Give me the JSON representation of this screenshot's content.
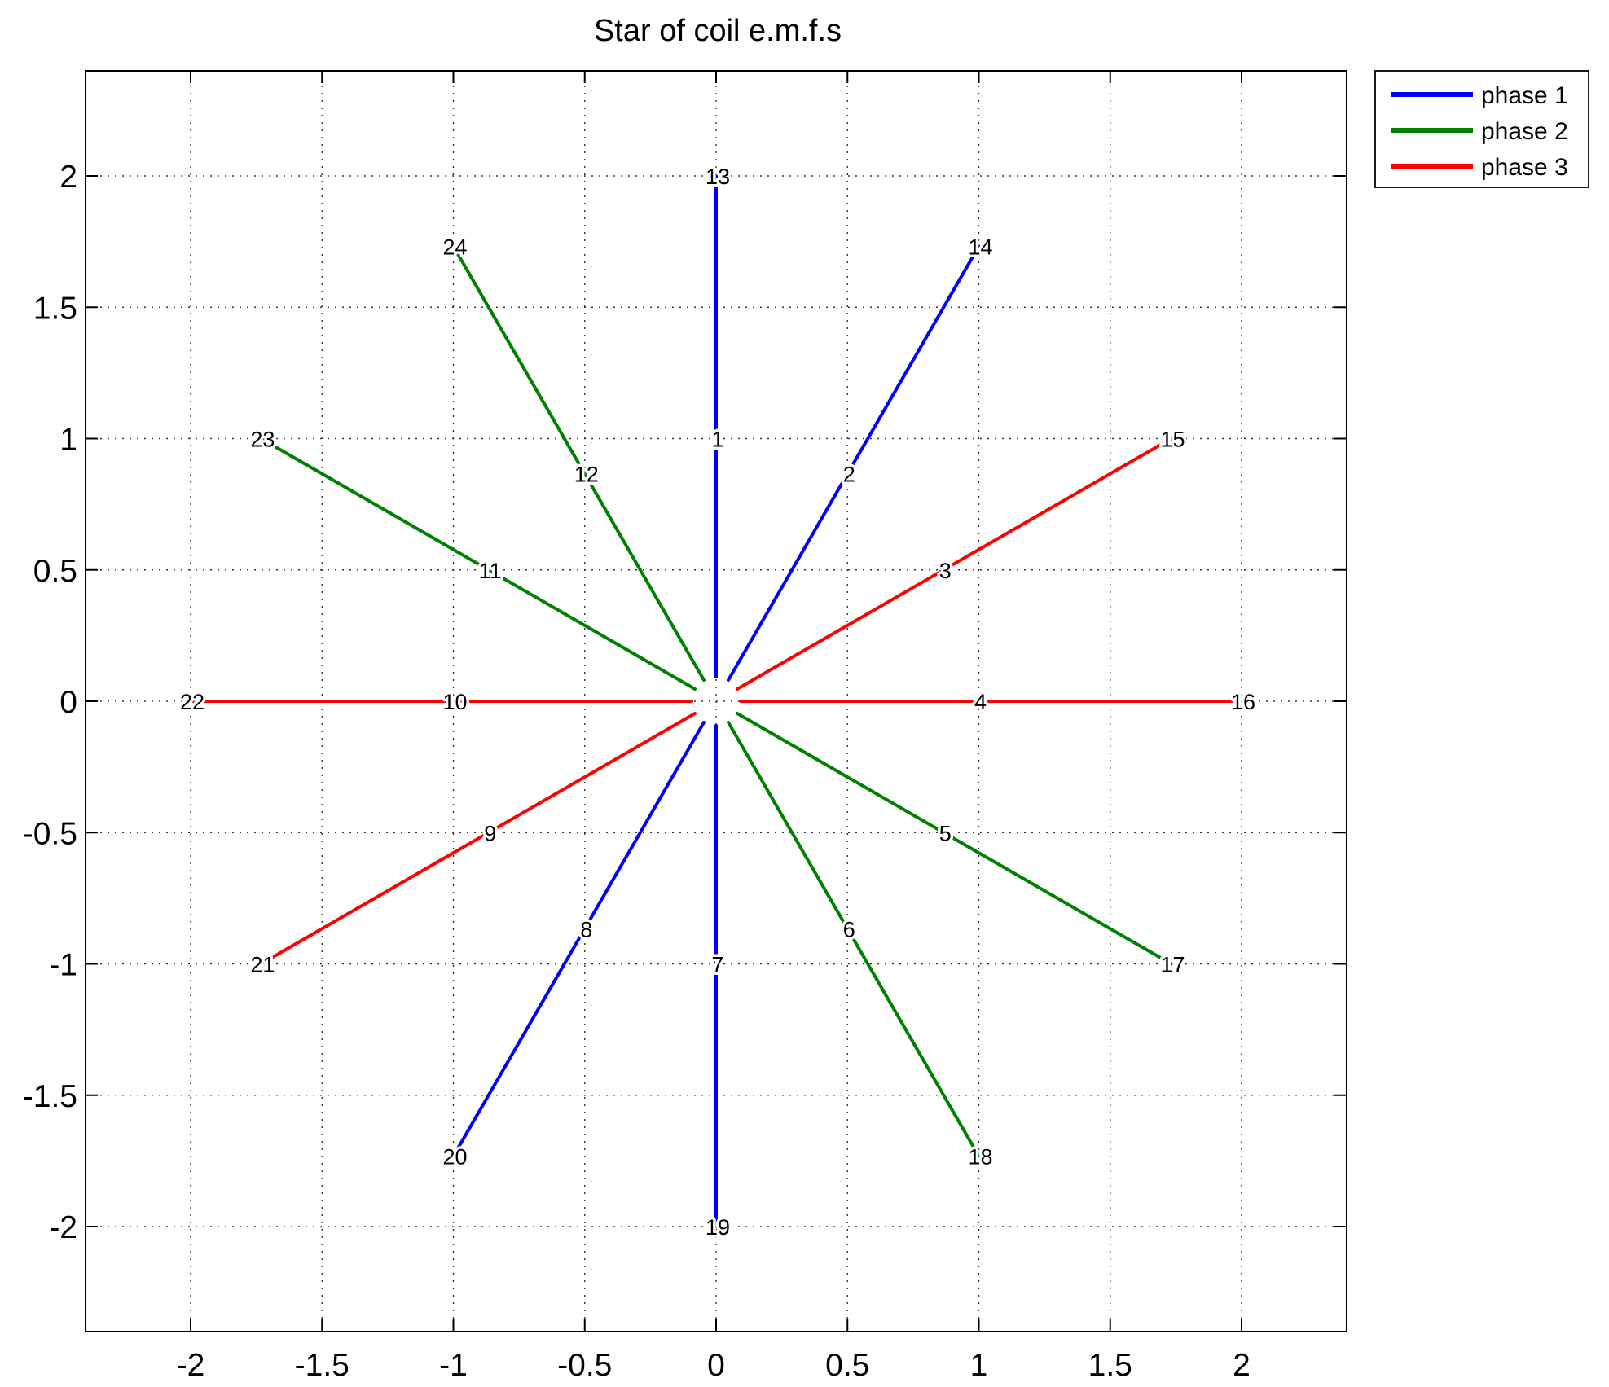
{
  "chart_data": {
    "type": "line",
    "title": "Star of coil e.m.f.s",
    "xlabel": "",
    "ylabel": "",
    "xlim": [
      -2.4,
      2.4
    ],
    "ylim": [
      -2.4,
      2.4
    ],
    "xticks": [
      "-2",
      "-1.5",
      "-1",
      "-0.5",
      "0",
      "0.5",
      "1",
      "1.5",
      "2"
    ],
    "yticks": [
      "2",
      "1.5",
      "1",
      "0.5",
      "0",
      "-0.5",
      "-1",
      "-1.5",
      "-2"
    ],
    "xtick_values": [
      -2,
      -1.5,
      -1,
      -0.5,
      0,
      0.5,
      1,
      1.5,
      2
    ],
    "ytick_values": [
      2,
      1.5,
      1,
      0.5,
      0,
      -0.5,
      -1,
      -1.5,
      -2
    ],
    "grid": true,
    "legend_position": "outside top-right",
    "series": [
      {
        "name": "phase 1",
        "color": "#0000ff",
        "points": [
          {
            "label": "1",
            "x": 0,
            "y": 1
          },
          {
            "label": "2",
            "x": 0.5,
            "y": 0.866
          },
          {
            "label": "13",
            "x": 0,
            "y": 2
          },
          {
            "label": "14",
            "x": 1,
            "y": 1.732
          },
          {
            "label": "7",
            "x": 0,
            "y": -1
          },
          {
            "label": "8",
            "x": -0.5,
            "y": -0.866
          },
          {
            "label": "19",
            "x": 0,
            "y": -2
          },
          {
            "label": "20",
            "x": -1,
            "y": -1.732
          }
        ]
      },
      {
        "name": "phase 2",
        "color": "#008000",
        "points": [
          {
            "label": "5",
            "x": 0.866,
            "y": -0.5
          },
          {
            "label": "6",
            "x": 0.5,
            "y": -0.866
          },
          {
            "label": "17",
            "x": 1.732,
            "y": -1
          },
          {
            "label": "18",
            "x": 1,
            "y": -1.732
          },
          {
            "label": "11",
            "x": -0.866,
            "y": 0.5
          },
          {
            "label": "12",
            "x": -0.5,
            "y": 0.866
          },
          {
            "label": "23",
            "x": -1.732,
            "y": 1
          },
          {
            "label": "24",
            "x": -1,
            "y": 1.732
          }
        ]
      },
      {
        "name": "phase 3",
        "color": "#ff0000",
        "points": [
          {
            "label": "9",
            "x": -0.866,
            "y": -0.5
          },
          {
            "label": "10",
            "x": -1,
            "y": 0
          },
          {
            "label": "21",
            "x": -1.732,
            "y": -1
          },
          {
            "label": "22",
            "x": -2,
            "y": 0
          },
          {
            "label": "3",
            "x": 0.866,
            "y": 0.5
          },
          {
            "label": "4",
            "x": 1,
            "y": 0
          },
          {
            "label": "15",
            "x": 1.732,
            "y": 1
          },
          {
            "label": "16",
            "x": 2,
            "y": 0
          }
        ]
      }
    ]
  }
}
